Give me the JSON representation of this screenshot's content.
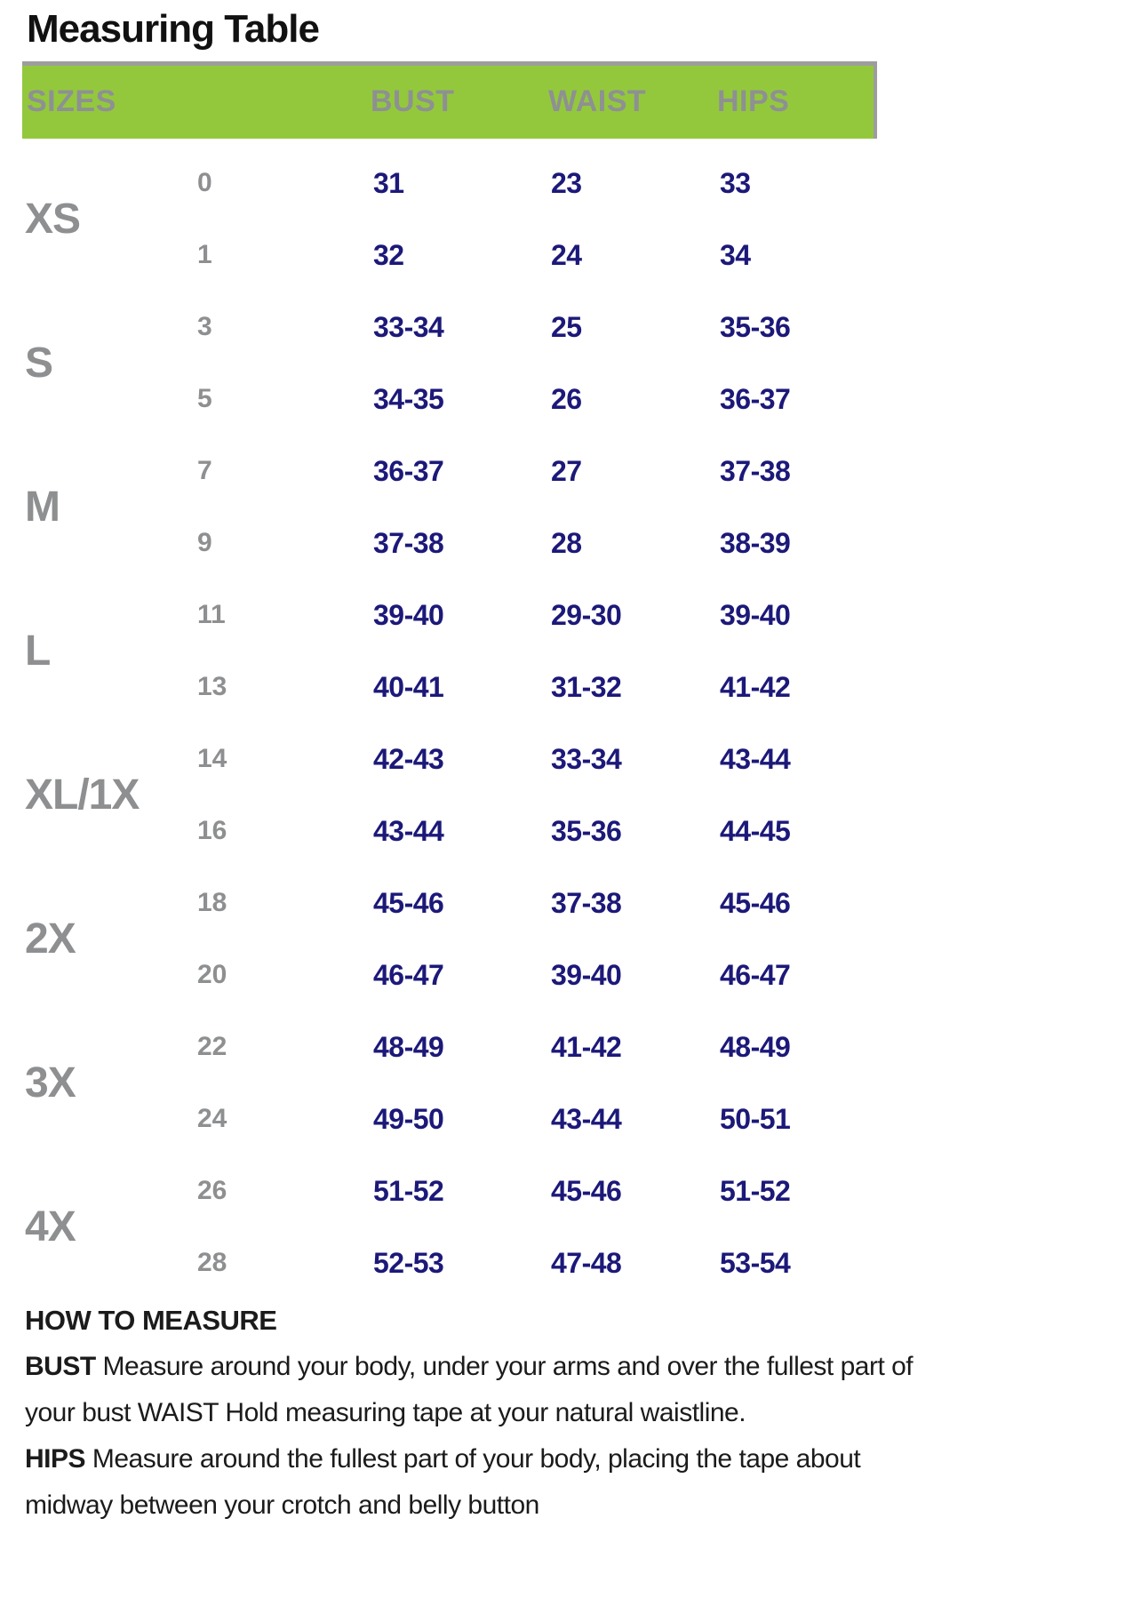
{
  "title": "Measuring Table",
  "colors": {
    "header_green": "#93c83d",
    "header_border_gray": "#9d9d9d",
    "header_text_gray": "#8e9093",
    "label_gray": "#8e8f91",
    "value_navy": "#1c1979",
    "text_black": "#1b1b1b"
  },
  "table": {
    "columns": [
      "SIZES",
      "BUST",
      "WAIST",
      "HIPS"
    ],
    "groups": [
      {
        "label": "XS",
        "rows": [
          {
            "size": "0",
            "bust": "31",
            "waist": "23",
            "hips": "33"
          },
          {
            "size": "1",
            "bust": "32",
            "waist": "24",
            "hips": "34"
          }
        ]
      },
      {
        "label": "S",
        "rows": [
          {
            "size": "3",
            "bust": "33-34",
            "waist": "25",
            "hips": "35-36"
          },
          {
            "size": "5",
            "bust": "34-35",
            "waist": "26",
            "hips": "36-37"
          }
        ]
      },
      {
        "label": "M",
        "rows": [
          {
            "size": "7",
            "bust": "36-37",
            "waist": "27",
            "hips": "37-38"
          },
          {
            "size": "9",
            "bust": "37-38",
            "waist": "28",
            "hips": "38-39"
          }
        ]
      },
      {
        "label": "L",
        "rows": [
          {
            "size": "11",
            "bust": "39-40",
            "waist": "29-30",
            "hips": "39-40"
          },
          {
            "size": "13",
            "bust": "40-41",
            "waist": "31-32",
            "hips": "41-42"
          }
        ]
      },
      {
        "label": "XL/1X",
        "rows": [
          {
            "size": "14",
            "bust": "42-43",
            "waist": "33-34",
            "hips": "43-44"
          },
          {
            "size": "16",
            "bust": "43-44",
            "waist": "35-36",
            "hips": "44-45"
          }
        ]
      },
      {
        "label": "2X",
        "rows": [
          {
            "size": "18",
            "bust": "45-46",
            "waist": "37-38",
            "hips": "45-46"
          },
          {
            "size": "20",
            "bust": "46-47",
            "waist": "39-40",
            "hips": "46-47"
          }
        ]
      },
      {
        "label": "3X",
        "rows": [
          {
            "size": "22",
            "bust": "48-49",
            "waist": "41-42",
            "hips": "48-49"
          },
          {
            "size": "24",
            "bust": "49-50",
            "waist": "43-44",
            "hips": "50-51"
          }
        ]
      },
      {
        "label": "4X",
        "rows": [
          {
            "size": "26",
            "bust": "51-52",
            "waist": "45-46",
            "hips": "51-52"
          },
          {
            "size": "28",
            "bust": "52-53",
            "waist": "47-48",
            "hips": "53-54"
          }
        ]
      }
    ]
  },
  "how_to_measure": {
    "heading": "HOW TO MEASURE",
    "bust_label": "BUST",
    "bust_text": "Measure around your body, under your arms and over the fullest part of your bust WAIST Hold measuring tape at your natural waistline.",
    "hips_label": "HIPS",
    "hips_text": "Measure around the fullest part of your body, placing the tape about midway between your crotch and belly button"
  }
}
